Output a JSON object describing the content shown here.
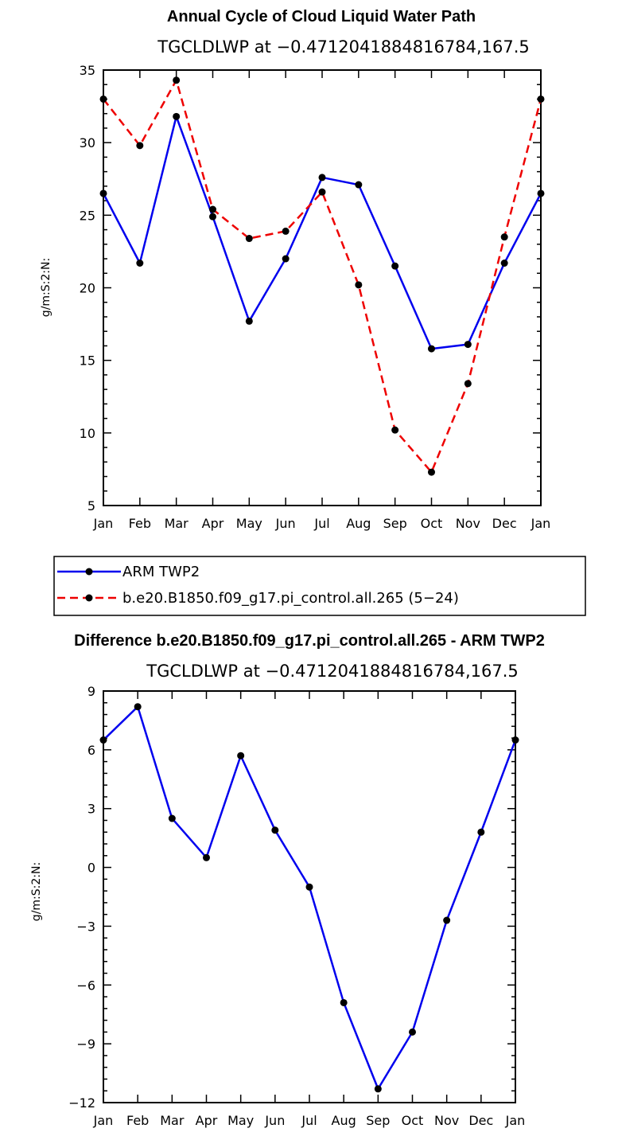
{
  "chart_data": [
    {
      "type": "line",
      "title": "Annual Cycle of Cloud Liquid Water Path",
      "subtitle": "TGCLDLWP at −0.4712041884816784,167.5",
      "ylabel": "g/m:S:2:N:",
      "xlabel": "",
      "categories": [
        "Jan",
        "Feb",
        "Mar",
        "Apr",
        "May",
        "Jun",
        "Jul",
        "Aug",
        "Sep",
        "Oct",
        "Nov",
        "Dec",
        "Jan"
      ],
      "ylim": [
        5,
        35
      ],
      "yticks": [
        5,
        10,
        15,
        20,
        25,
        30,
        35
      ],
      "series": [
        {
          "name": "ARM TWP2",
          "color": "#0000ee",
          "dash": "solid",
          "values": [
            26.5,
            21.7,
            31.8,
            24.9,
            17.7,
            22.0,
            27.6,
            27.1,
            21.5,
            15.8,
            16.1,
            21.7,
            26.5
          ]
        },
        {
          "name": "b.e20.B1850.f09_g17.pi_control.all.265 (5−24)",
          "color": "#ee0000",
          "dash": "dashed",
          "values": [
            33.0,
            29.8,
            34.3,
            25.4,
            23.4,
            23.9,
            26.6,
            20.2,
            10.2,
            7.3,
            13.4,
            23.5,
            33.0
          ]
        }
      ]
    },
    {
      "type": "line",
      "title": "Difference b.e20.B1850.f09_g17.pi_control.all.265 - ARM TWP2",
      "subtitle": "TGCLDLWP at −0.4712041884816784,167.5",
      "ylabel": "g/m:S:2:N:",
      "xlabel": "",
      "categories": [
        "Jan",
        "Feb",
        "Mar",
        "Apr",
        "May",
        "Jun",
        "Jul",
        "Aug",
        "Sep",
        "Oct",
        "Nov",
        "Dec",
        "Jan"
      ],
      "ylim": [
        -12,
        9
      ],
      "yticks": [
        -12,
        -9,
        -6,
        -3,
        0,
        3,
        6,
        9
      ],
      "ytick_labels": [
        "−12",
        "−9",
        "−6",
        "−3",
        "0",
        "3",
        "6",
        "9"
      ],
      "series": [
        {
          "name": "Difference",
          "color": "#0000ee",
          "dash": "solid",
          "values": [
            6.5,
            8.2,
            2.5,
            0.5,
            5.7,
            1.9,
            -1.0,
            -6.9,
            -11.3,
            -8.4,
            -2.7,
            1.8,
            6.5
          ]
        }
      ]
    }
  ]
}
